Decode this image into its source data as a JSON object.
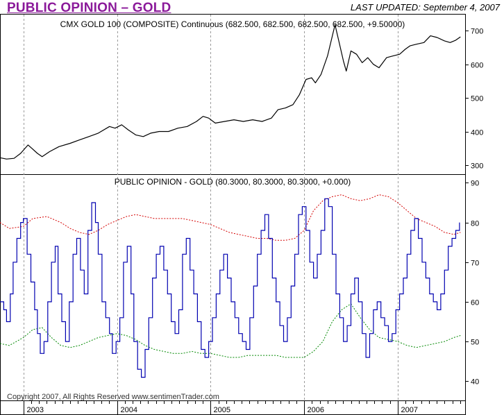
{
  "header": {
    "title": "PUBLIC OPINION – GOLD",
    "last_updated": "LAST UPDATED:  September 4, 2007"
  },
  "footer": {
    "copyright": "Copyright 2007, All Rights Reserved  www.sentimenTrader.com"
  },
  "colors": {
    "title": "#8b1a9a",
    "price_line": "#000000",
    "opinion_line": "#0000b0",
    "upper_band": "#d40000",
    "lower_band": "#008800",
    "grid": "#9a9a9a"
  },
  "chart_data": [
    {
      "type": "line",
      "title": "CMX GOLD 100 (COMPOSITE) Continuous (682.500, 682.500, 682.500, 682.500, +9.50000)",
      "x_tick_labels": [
        "2003",
        "2004",
        "2005",
        "2006",
        "2007"
      ],
      "y_ticks": [
        300,
        400,
        500,
        600,
        700
      ],
      "ylim": [
        275,
        740
      ],
      "xlim": [
        2002.75,
        2007.72
      ],
      "grid": "vertical dotted at year boundaries",
      "series": [
        {
          "x": [
            2002.75,
            2002.82,
            2002.9,
            2002.97,
            2003.05,
            2003.09,
            2003.15,
            2003.2,
            2003.28,
            2003.38,
            2003.5,
            2003.6,
            2003.7,
            2003.8,
            2003.92,
            2003.98,
            2004.05,
            2004.12,
            2004.2,
            2004.28,
            2004.36,
            2004.45,
            2004.55,
            2004.65,
            2004.75,
            2004.85,
            2004.92,
            2004.98,
            2005.05,
            2005.15,
            2005.25,
            2005.35,
            2005.45,
            2005.55,
            2005.65,
            2005.72,
            2005.8,
            2005.88,
            2005.95,
            2006.02,
            2006.08,
            2006.12,
            2006.18,
            2006.25,
            2006.33,
            2006.37,
            2006.42,
            2006.45,
            2006.5,
            2006.56,
            2006.62,
            2006.68,
            2006.74,
            2006.8,
            2006.88,
            2006.95,
            2007.02,
            2007.08,
            2007.13,
            2007.2,
            2007.28,
            2007.35,
            2007.42,
            2007.5,
            2007.56,
            2007.62,
            2007.67
          ],
          "y": [
            322,
            318,
            320,
            335,
            360,
            350,
            335,
            325,
            340,
            355,
            365,
            375,
            385,
            395,
            415,
            410,
            420,
            405,
            390,
            385,
            395,
            400,
            400,
            410,
            415,
            430,
            445,
            440,
            425,
            430,
            435,
            430,
            435,
            430,
            440,
            465,
            470,
            480,
            510,
            555,
            560,
            545,
            570,
            625,
            718,
            670,
            610,
            580,
            640,
            630,
            605,
            620,
            600,
            590,
            620,
            625,
            630,
            645,
            655,
            660,
            665,
            685,
            680,
            670,
            665,
            672,
            682
          ]
        }
      ]
    },
    {
      "type": "line",
      "title": "PUBLIC OPINION - GOLD (80.3000, 80.3000, 80.3000, +0.000)",
      "x_tick_labels": [
        "2003",
        "2004",
        "2005",
        "2006",
        "2007"
      ],
      "y_ticks": [
        40,
        50,
        60,
        70,
        80,
        90
      ],
      "ylim": [
        35.5,
        92
      ],
      "xlim": [
        2002.75,
        2007.72
      ],
      "series": [
        {
          "name": "opinion",
          "x": [
            2002.75,
            2002.79,
            2002.82,
            2002.86,
            2002.89,
            2002.93,
            2002.97,
            2003.0,
            2003.04,
            2003.08,
            2003.12,
            2003.15,
            2003.18,
            2003.22,
            2003.26,
            2003.3,
            2003.34,
            2003.37,
            2003.41,
            2003.45,
            2003.49,
            2003.53,
            2003.57,
            2003.61,
            2003.65,
            2003.69,
            2003.73,
            2003.77,
            2003.8,
            2003.84,
            2003.88,
            2003.92,
            2003.95,
            2003.99,
            2004.03,
            2004.07,
            2004.11,
            2004.15,
            2004.18,
            2004.22,
            2004.26,
            2004.3,
            2004.34,
            2004.38,
            2004.42,
            2004.46,
            2004.5,
            2004.54,
            2004.58,
            2004.62,
            2004.66,
            2004.7,
            2004.74,
            2004.78,
            2004.82,
            2004.86,
            2004.9,
            2004.94,
            2004.98,
            2005.02,
            2005.06,
            2005.1,
            2005.14,
            2005.18,
            2005.22,
            2005.26,
            2005.3,
            2005.34,
            2005.38,
            2005.42,
            2005.46,
            2005.5,
            2005.54,
            2005.58,
            2005.62,
            2005.66,
            2005.7,
            2005.74,
            2005.78,
            2005.82,
            2005.86,
            2005.9,
            2005.94,
            2005.98,
            2006.02,
            2006.06,
            2006.1,
            2006.14,
            2006.18,
            2006.22,
            2006.26,
            2006.3,
            2006.34,
            2006.38,
            2006.42,
            2006.46,
            2006.5,
            2006.54,
            2006.58,
            2006.62,
            2006.66,
            2006.7,
            2006.74,
            2006.78,
            2006.82,
            2006.86,
            2006.9,
            2006.94,
            2006.98,
            2007.02,
            2007.06,
            2007.1,
            2007.14,
            2007.18,
            2007.22,
            2007.26,
            2007.3,
            2007.34,
            2007.38,
            2007.42,
            2007.46,
            2007.5,
            2007.54,
            2007.58,
            2007.62,
            2007.66
          ],
          "y": [
            60,
            58,
            55,
            62,
            70,
            76,
            80,
            81,
            72,
            65,
            58,
            52,
            47,
            50,
            60,
            70,
            74,
            62,
            55,
            50,
            60,
            72,
            76,
            68,
            62,
            78,
            85,
            80,
            72,
            60,
            56,
            52,
            47,
            50,
            56,
            70,
            74,
            62,
            50,
            43,
            41,
            48,
            56,
            66,
            72,
            74,
            68,
            62,
            55,
            52,
            58,
            72,
            76,
            68,
            62,
            55,
            48,
            46,
            50,
            56,
            62,
            68,
            72,
            66,
            60,
            56,
            52,
            50,
            48,
            56,
            64,
            72,
            78,
            82,
            76,
            66,
            60,
            54,
            50,
            56,
            64,
            72,
            82,
            84,
            78,
            70,
            66,
            72,
            78,
            86,
            84,
            72,
            62,
            56,
            50,
            54,
            62,
            66,
            60,
            52,
            46,
            52,
            58,
            60,
            56,
            54,
            50,
            52,
            58,
            62,
            66,
            72,
            78,
            81,
            76,
            70,
            66,
            62,
            60,
            58,
            62,
            68,
            74,
            76,
            78,
            80
          ]
        },
        {
          "name": "upper band",
          "x": [
            2002.75,
            2002.85,
            2003.0,
            2003.1,
            2003.25,
            2003.4,
            2003.5,
            2003.6,
            2003.7,
            2003.8,
            2003.9,
            2004.0,
            2004.1,
            2004.2,
            2004.3,
            2004.4,
            2004.5,
            2004.6,
            2004.7,
            2004.8,
            2004.9,
            2005.0,
            2005.1,
            2005.2,
            2005.3,
            2005.4,
            2005.5,
            2005.6,
            2005.7,
            2005.8,
            2005.9,
            2006.0,
            2006.1,
            2006.2,
            2006.3,
            2006.4,
            2006.5,
            2006.6,
            2006.7,
            2006.8,
            2006.9,
            2007.0,
            2007.1,
            2007.2,
            2007.3,
            2007.4,
            2007.5,
            2007.6,
            2007.67
          ],
          "y": [
            80,
            78.5,
            79,
            81,
            81.5,
            80,
            78.5,
            77.5,
            77,
            78,
            79.5,
            80.5,
            81.5,
            82,
            81.5,
            81,
            81,
            81,
            81,
            80.5,
            80,
            79.5,
            78.5,
            77.5,
            77,
            76.5,
            76,
            76,
            75.5,
            75.5,
            76,
            78,
            83,
            85.5,
            86.5,
            87,
            86,
            85.5,
            86,
            87,
            86.5,
            85,
            83,
            81,
            80,
            79,
            77.5,
            77,
            77.5
          ]
        },
        {
          "name": "lower band",
          "x": [
            2002.75,
            2002.85,
            2003.0,
            2003.1,
            2003.2,
            2003.3,
            2003.4,
            2003.5,
            2003.6,
            2003.7,
            2003.8,
            2003.9,
            2004.0,
            2004.1,
            2004.2,
            2004.3,
            2004.4,
            2004.5,
            2004.6,
            2004.7,
            2004.8,
            2004.9,
            2005.0,
            2005.1,
            2005.2,
            2005.3,
            2005.4,
            2005.5,
            2005.6,
            2005.7,
            2005.8,
            2005.9,
            2006.0,
            2006.1,
            2006.2,
            2006.3,
            2006.4,
            2006.5,
            2006.6,
            2006.7,
            2006.8,
            2006.9,
            2007.0,
            2007.1,
            2007.2,
            2007.3,
            2007.4,
            2007.5,
            2007.6,
            2007.67
          ],
          "y": [
            49.5,
            49,
            51,
            53,
            53.5,
            51,
            49,
            48.5,
            49,
            50,
            51,
            51.5,
            52,
            51.5,
            50.5,
            49,
            48,
            47.5,
            47,
            47,
            47.5,
            47,
            47,
            46.5,
            46,
            46,
            46.5,
            46.5,
            46.5,
            46.5,
            46,
            46,
            46,
            47.5,
            50,
            55,
            58,
            59.5,
            56,
            53,
            51,
            50.5,
            50,
            49,
            48.5,
            49,
            49.5,
            50,
            51,
            51.5
          ]
        }
      ]
    }
  ]
}
